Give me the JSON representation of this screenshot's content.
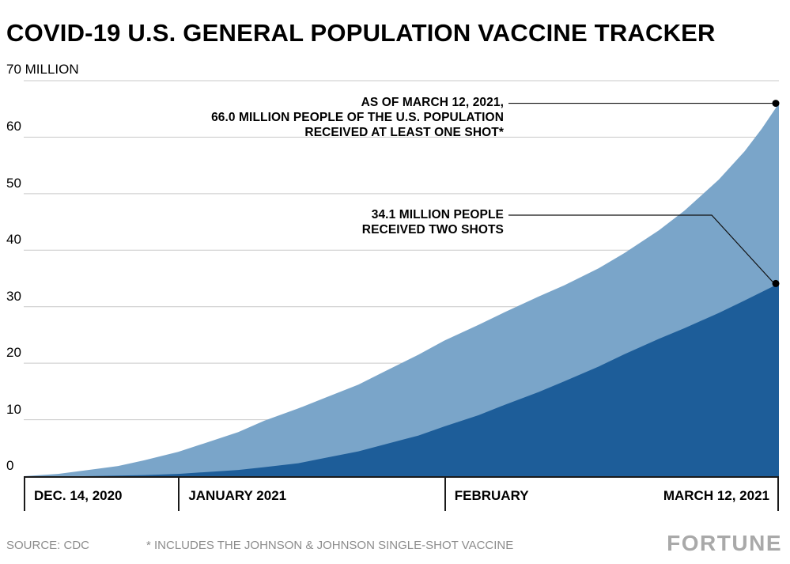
{
  "header": {
    "title": "COVID-19 U.S. GENERAL POPULATION VACCINE TRACKER"
  },
  "footer": {
    "source": "SOURCE: CDC",
    "note": "* INCLUDES THE JOHNSON & JOHNSON SINGLE-SHOT VACCINE",
    "logo": "FORTUNE"
  },
  "colors": {
    "light_blue": "#7aa5c9",
    "dark_blue": "#1d5d99",
    "grid": "#c9c9c9",
    "axis": "#1a1a1a",
    "annotation_line": "#111111",
    "dot": "#000000",
    "footer_text": "#8c8c8c",
    "logo_gray": "#a9a9a9"
  },
  "chart_data": {
    "type": "area",
    "title": "COVID-19 U.S. GENERAL POPULATION VACCINE TRACKER",
    "x_unit": "days since Dec 14, 2020",
    "x_range": [
      0,
      88
    ],
    "y_range": [
      0,
      70
    ],
    "y_axis_top_label": "70 MILLION",
    "y_ticks": [
      0,
      10,
      20,
      30,
      40,
      50,
      60
    ],
    "grid": true,
    "legend_position": "none",
    "x_ticks": [
      {
        "day": 0,
        "label": "DEC. 14, 2020",
        "align": "left"
      },
      {
        "day": 18,
        "label": "JANUARY 2021",
        "align": "left"
      },
      {
        "day": 49,
        "label": "FEBRUARY",
        "align": "left"
      },
      {
        "day": 88,
        "label": "MARCH 12, 2021",
        "align": "right"
      }
    ],
    "x": [
      0,
      4,
      7,
      11,
      14,
      18,
      21,
      25,
      28,
      32,
      35,
      39,
      42,
      46,
      49,
      53,
      56,
      60,
      63,
      67,
      70,
      74,
      77,
      81,
      84,
      86,
      88
    ],
    "series": [
      {
        "name": "People who received at least one shot (millions)",
        "color": "#7aa5c9",
        "final_value": 66.0,
        "values": [
          0,
          0.4,
          1.0,
          1.8,
          2.8,
          4.3,
          5.8,
          7.8,
          9.8,
          12.0,
          13.8,
          16.2,
          18.5,
          21.5,
          24.0,
          26.8,
          29.0,
          31.8,
          33.8,
          36.8,
          39.5,
          43.5,
          47.0,
          52.5,
          57.5,
          61.5,
          66.0
        ]
      },
      {
        "name": "People who received two shots (millions)",
        "color": "#1d5d99",
        "final_value": 34.1,
        "values": [
          0,
          0,
          0,
          0.1,
          0.2,
          0.4,
          0.7,
          1.1,
          1.6,
          2.3,
          3.2,
          4.4,
          5.6,
          7.2,
          8.8,
          10.8,
          12.6,
          14.9,
          16.8,
          19.4,
          21.6,
          24.3,
          26.2,
          28.9,
          31.1,
          32.6,
          34.1
        ]
      }
    ],
    "annotations": [
      {
        "lines": [
          "AS OF MARCH 12, 2021,",
          "66.0 MILLION PEOPLE OF THE U.S. POPULATION",
          "RECEIVED AT LEAST ONE SHOT*"
        ],
        "points_to_value": 66.0
      },
      {
        "lines": [
          "34.1 MILLION PEOPLE",
          "RECEIVED TWO SHOTS"
        ],
        "points_to_value": 34.1
      }
    ]
  }
}
